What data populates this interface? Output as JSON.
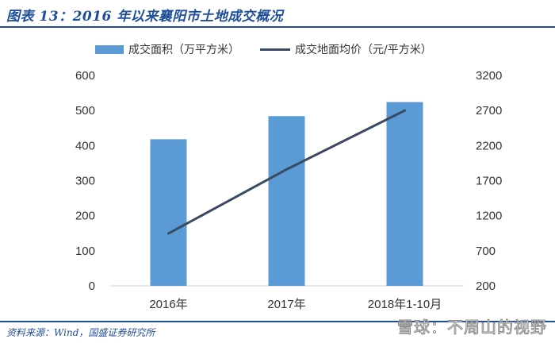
{
  "figure": {
    "title": "图表 13：2016 年以来襄阳市土地成交概况",
    "source": "资料来源：Wind，国盛证券研究所",
    "watermark": "雪球：不周山的视野"
  },
  "colors": {
    "brand": "#1f4e9a",
    "bar": "#5b9bd5",
    "line": "#3a4a60"
  },
  "chart_data": {
    "type": "bar",
    "categories": [
      "2016年",
      "2017年",
      "2018年1-10月"
    ],
    "series": [
      {
        "name": "成交面积（万平方米）",
        "type": "bar",
        "axis": "left",
        "values": [
          418,
          484,
          524
        ]
      },
      {
        "name": "成交地面均价（元/平方米）",
        "type": "line",
        "axis": "right",
        "values": [
          946,
          1860,
          2700
        ]
      }
    ],
    "y_left": {
      "min": 0,
      "max": 600,
      "ticks": [
        0,
        100,
        200,
        300,
        400,
        500,
        600
      ]
    },
    "y_right": {
      "min": 200,
      "max": 3200,
      "ticks": [
        200,
        700,
        1200,
        1700,
        2200,
        2700,
        3200
      ]
    },
    "grid": false,
    "legend_position": "top"
  }
}
